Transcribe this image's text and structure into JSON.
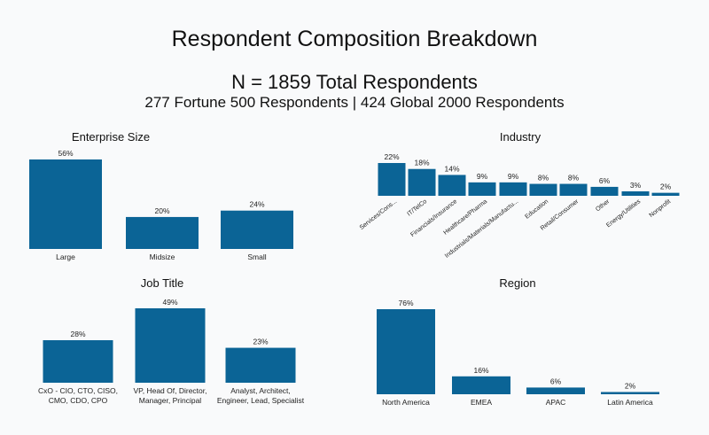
{
  "header": {
    "title": "Respondent Composition Breakdown",
    "total": "N = 1859 Total Respondents",
    "breakdown": "277 Fortune 500 Respondents | 424 Global 2000 Respondents"
  },
  "colors": {
    "bar": "#0b6496",
    "background": "#f9fafb"
  },
  "chart_data": [
    {
      "type": "bar",
      "title": "Enterprise Size",
      "categories": [
        "Large",
        "Midsize",
        "Small"
      ],
      "values": [
        56,
        20,
        24
      ],
      "value_labels": [
        "56%",
        "20%",
        "24%"
      ],
      "ylim": [
        0,
        56
      ]
    },
    {
      "type": "bar",
      "title": "Industry",
      "categories": [
        "Services/Cons...",
        "IT/TelCo",
        "Financials/Insurance",
        "Healthcare/Pharma",
        "Industrials/Materials/Manufactu...",
        "Education",
        "Retail/Consumer",
        "Other",
        "Energy/Utilities",
        "Nonprofit"
      ],
      "values": [
        22,
        18,
        14,
        9,
        9,
        8,
        8,
        6,
        3,
        2
      ],
      "value_labels": [
        "22%",
        "18%",
        "14%",
        "9%",
        "9%",
        "8%",
        "8%",
        "6%",
        "3%",
        "2%"
      ],
      "ylim": [
        0,
        22
      ]
    },
    {
      "type": "bar",
      "title": "Job Title",
      "categories": [
        [
          "CxO - CIO, CTO, CISO,",
          "CMO, CDO, CPO"
        ],
        [
          "VP, Head Of, Director,",
          "Manager, Principal"
        ],
        [
          "Analyst, Architect,",
          "Engineer, Lead, Specialist"
        ]
      ],
      "values": [
        28,
        49,
        23
      ],
      "value_labels": [
        "28%",
        "49%",
        "23%"
      ],
      "ylim": [
        0,
        49
      ]
    },
    {
      "type": "bar",
      "title": "Region",
      "categories": [
        "North America",
        "EMEA",
        "APAC",
        "Latin America"
      ],
      "values": [
        76,
        16,
        6,
        2
      ],
      "value_labels": [
        "76%",
        "16%",
        "6%",
        "2%"
      ],
      "ylim": [
        0,
        76
      ]
    }
  ]
}
